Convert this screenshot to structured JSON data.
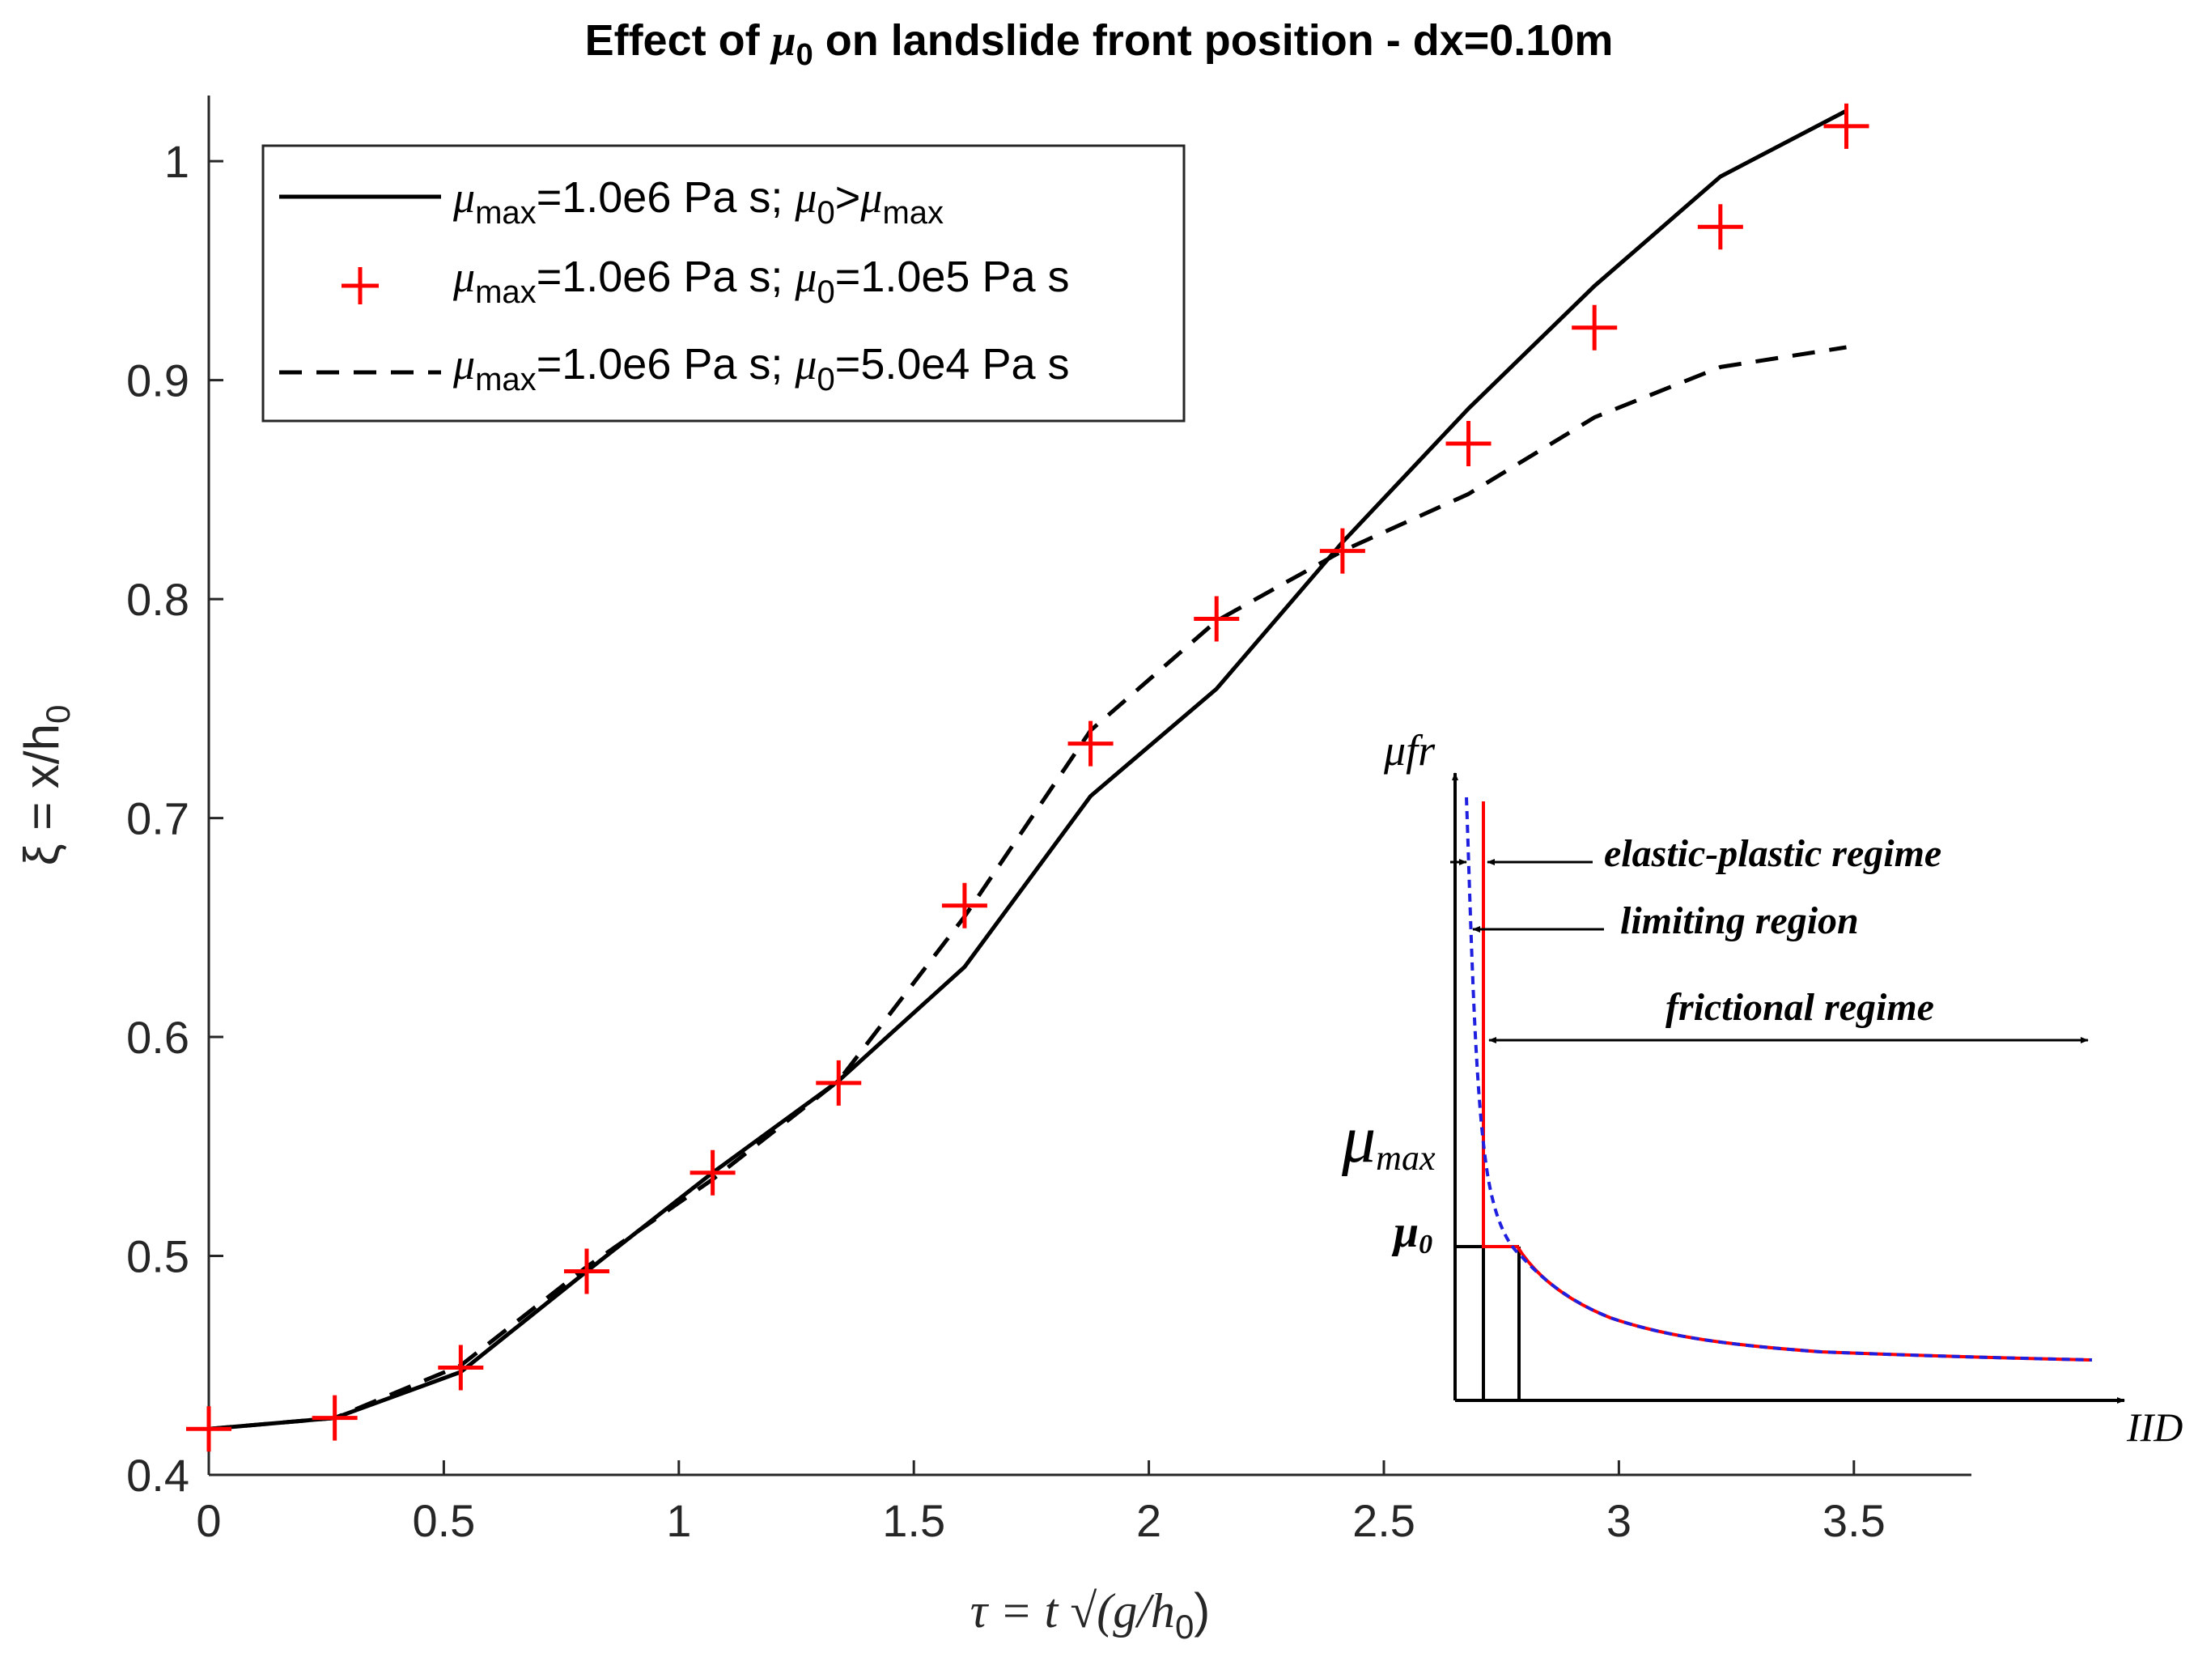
{
  "chart_data": {
    "type": "line",
    "title": {
      "prefix": "Effect of ",
      "symbol": "μ",
      "subscript": "0",
      "suffix": " on landslide front position - dx=0.10m"
    },
    "xlabel": {
      "main": "τ = t √(g/h",
      "sub": "0",
      "tail": ")"
    },
    "ylabel": {
      "main": "ξ = x/h",
      "sub": "0"
    },
    "xlim": [
      0,
      3.75
    ],
    "ylim": [
      0.4,
      1.03
    ],
    "xticks": [
      0,
      0.5,
      1,
      1.5,
      2,
      2.5,
      3,
      3.5
    ],
    "xtick_labels": [
      "0",
      "0.5",
      "1",
      "1.5",
      "2",
      "2.5",
      "3",
      "3.5"
    ],
    "yticks": [
      0.4,
      0.5,
      0.6,
      0.7,
      0.8,
      0.9,
      1.0
    ],
    "ytick_labels": [
      "0.4",
      "0.5",
      "0.6",
      "0.7",
      "0.8",
      "0.9",
      "1"
    ],
    "grid": false,
    "legend_position": "top-left",
    "x": [
      0,
      0.268,
      0.536,
      0.804,
      1.072,
      1.34,
      1.608,
      1.876,
      2.144,
      2.412,
      2.68,
      2.948,
      3.216,
      3.484
    ],
    "series": [
      {
        "name": "solid",
        "legend": {
          "a": "μ",
          "a_sub": "max",
          "b": "=1.0e6 Pa s; ",
          "c": "μ",
          "c_sub": "0",
          "d": ">",
          "e": "μ",
          "e_sub": "max"
        },
        "style": "solid",
        "color": "#000000",
        "values": [
          0.421,
          0.426,
          0.447,
          0.493,
          0.538,
          0.58,
          0.632,
          0.71,
          0.759,
          0.826,
          0.887,
          0.943,
          0.993,
          1.023
        ]
      },
      {
        "name": "plus",
        "legend": {
          "a": "μ",
          "a_sub": "max",
          "b": "=1.0e6 Pa s; ",
          "c": "μ",
          "c_sub": "0",
          "d": "=1.0e5 Pa s"
        },
        "style": "marker-plus",
        "color": "#ff0000",
        "values": [
          0.421,
          0.426,
          0.449,
          0.493,
          0.538,
          0.579,
          0.66,
          0.734,
          0.791,
          0.822,
          0.871,
          0.924,
          0.97,
          1.016
        ]
      },
      {
        "name": "dashed",
        "legend": {
          "a": "μ",
          "a_sub": "max",
          "b": "=1.0e6 Pa s; ",
          "c": "μ",
          "c_sub": "0",
          "d": "=5.0e4 Pa s"
        },
        "style": "dashed",
        "color": "#000000",
        "values": [
          0.421,
          0.426,
          0.45,
          0.495,
          0.535,
          0.58,
          0.655,
          0.74,
          0.79,
          0.822,
          0.848,
          0.883,
          0.906,
          0.915
        ]
      }
    ]
  },
  "inset": {
    "y_axis_label": "μfr",
    "x_axis_label": "IID",
    "mu_max_label": {
      "symbol": "μ",
      "sub": "max"
    },
    "mu_0_label": {
      "symbol": "μ",
      "sub": "0"
    },
    "annotations": [
      "elastic-plastic regime",
      "limiting region",
      "frictional regime"
    ],
    "curve_colors": {
      "red": "#ff0000",
      "blue": "#1f1fdf"
    }
  }
}
